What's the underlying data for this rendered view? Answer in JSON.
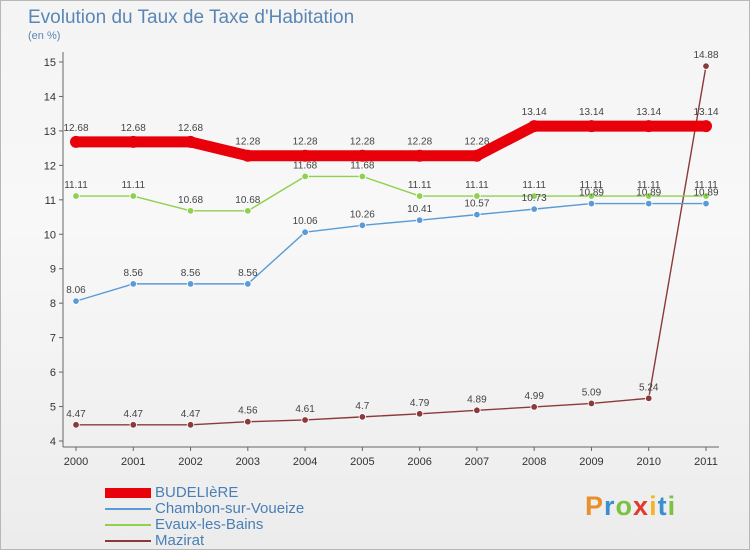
{
  "title": "Evolution du Taux de Taxe d'Habitation",
  "unit_note": "(en %)",
  "logo_text": "Proxiti",
  "logo_colors": [
    "#e9902b",
    "#3b8fd1",
    "#7cc242",
    "#e23a2e",
    "#f2b52a",
    "#3b8fd1",
    "#7cc242"
  ],
  "chart_data": {
    "type": "line",
    "x": [
      "2000",
      "2001",
      "2002",
      "2003",
      "2004",
      "2005",
      "2006",
      "2007",
      "2008",
      "2009",
      "2010",
      "2011"
    ],
    "ylim": [
      4,
      15
    ],
    "yticks": [
      4,
      5,
      6,
      7,
      8,
      9,
      10,
      11,
      12,
      13,
      14,
      15
    ],
    "grid": false,
    "legend_position": "bottom-left",
    "series": [
      {
        "name": "BUDELIèRE",
        "color": "#e8000b",
        "values": [
          12.68,
          12.68,
          12.68,
          12.28,
          12.28,
          12.28,
          12.28,
          12.28,
          13.14,
          13.14,
          13.14,
          13.14
        ],
        "labels": [
          "12.68",
          "12.68",
          "12.68",
          "12.28",
          "12.28",
          "12.28",
          "12.28",
          "12.28",
          "13.14",
          "13.14",
          "13.14",
          "13.14"
        ]
      },
      {
        "name": "Chambon-sur-Voueize",
        "color": "#5b9bd5",
        "values": [
          8.06,
          8.56,
          8.56,
          8.56,
          10.06,
          10.26,
          10.41,
          10.57,
          10.73,
          10.89,
          10.89,
          10.89
        ],
        "labels": [
          "8.06",
          "8.56",
          "8.56",
          "8.56",
          "10.06",
          "10.26",
          "10.41",
          "10.57",
          "10.73",
          "10.89",
          "10.89",
          "10.89"
        ]
      },
      {
        "name": "Evaux-les-Bains",
        "color": "#8fd14f",
        "values": [
          11.11,
          11.11,
          10.68,
          10.68,
          11.68,
          11.68,
          11.11,
          11.11,
          11.11,
          11.11,
          11.11,
          11.11
        ],
        "labels": [
          "11.11",
          "11.11",
          "10.68",
          "10.68",
          "11.68",
          "11.68",
          "11.11",
          "11.11",
          "11.11",
          "11.11",
          "11.11",
          "11.11"
        ]
      },
      {
        "name": "Mazirat",
        "color": "#8b3a3a",
        "values": [
          4.47,
          4.47,
          4.47,
          4.56,
          4.61,
          4.7,
          4.79,
          4.89,
          4.99,
          5.09,
          5.24,
          14.88
        ],
        "labels": [
          "4.47",
          "4.47",
          "4.47",
          "4.56",
          "4.61",
          "4.7",
          "4.79",
          "4.89",
          "4.99",
          "5.09",
          "5.24",
          "14.88"
        ]
      }
    ]
  }
}
